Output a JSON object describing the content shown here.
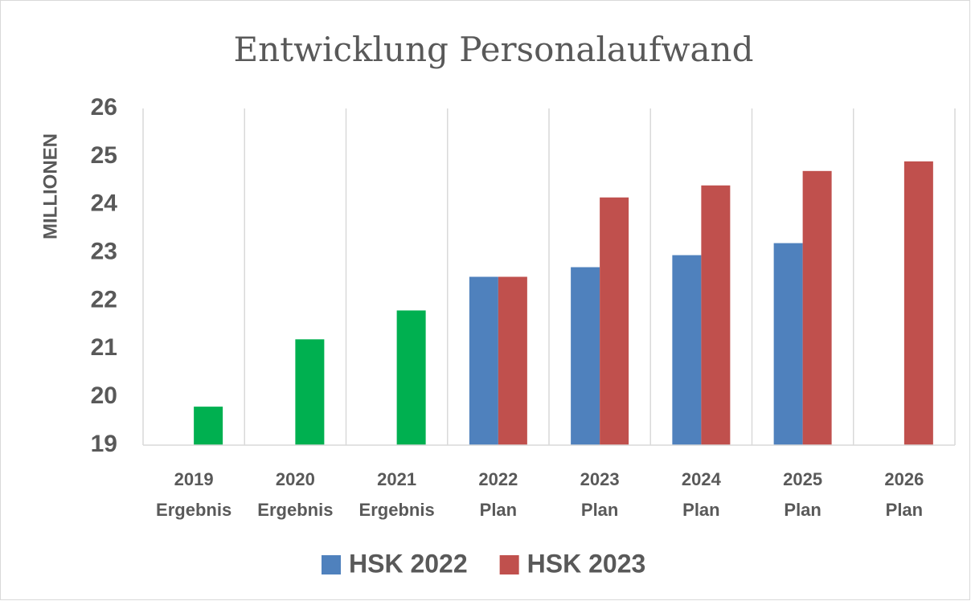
{
  "chart_data": {
    "type": "bar",
    "title": "Entwicklung Personalaufwand",
    "y_label": "MILLIONEN",
    "categories": [
      [
        "2019",
        "Ergebnis"
      ],
      [
        "2020",
        "Ergebnis"
      ],
      [
        "2021",
        "Ergebnis"
      ],
      [
        "2022",
        "Plan"
      ],
      [
        "2023",
        "Plan"
      ],
      [
        "2024",
        "Plan"
      ],
      [
        "2025",
        "Plan"
      ],
      [
        "2026",
        "Plan"
      ]
    ],
    "series": [
      {
        "color": "#00b050",
        "values": [
          19.8,
          21.2,
          21.8,
          null,
          null,
          null,
          null,
          null
        ]
      },
      {
        "name": "HSK 2022",
        "color": "#4f81bd",
        "values": [
          null,
          null,
          null,
          22.5,
          22.7,
          22.95,
          23.2,
          null
        ]
      },
      {
        "name": "HSK 2023",
        "color": "#c0504d",
        "values": [
          null,
          null,
          null,
          22.5,
          24.15,
          24.4,
          24.7,
          24.9
        ]
      }
    ],
    "ylim": [
      19,
      26
    ],
    "yticks": [
      19,
      20,
      21,
      22,
      23,
      24,
      25,
      26
    ],
    "legend": "bottom"
  }
}
